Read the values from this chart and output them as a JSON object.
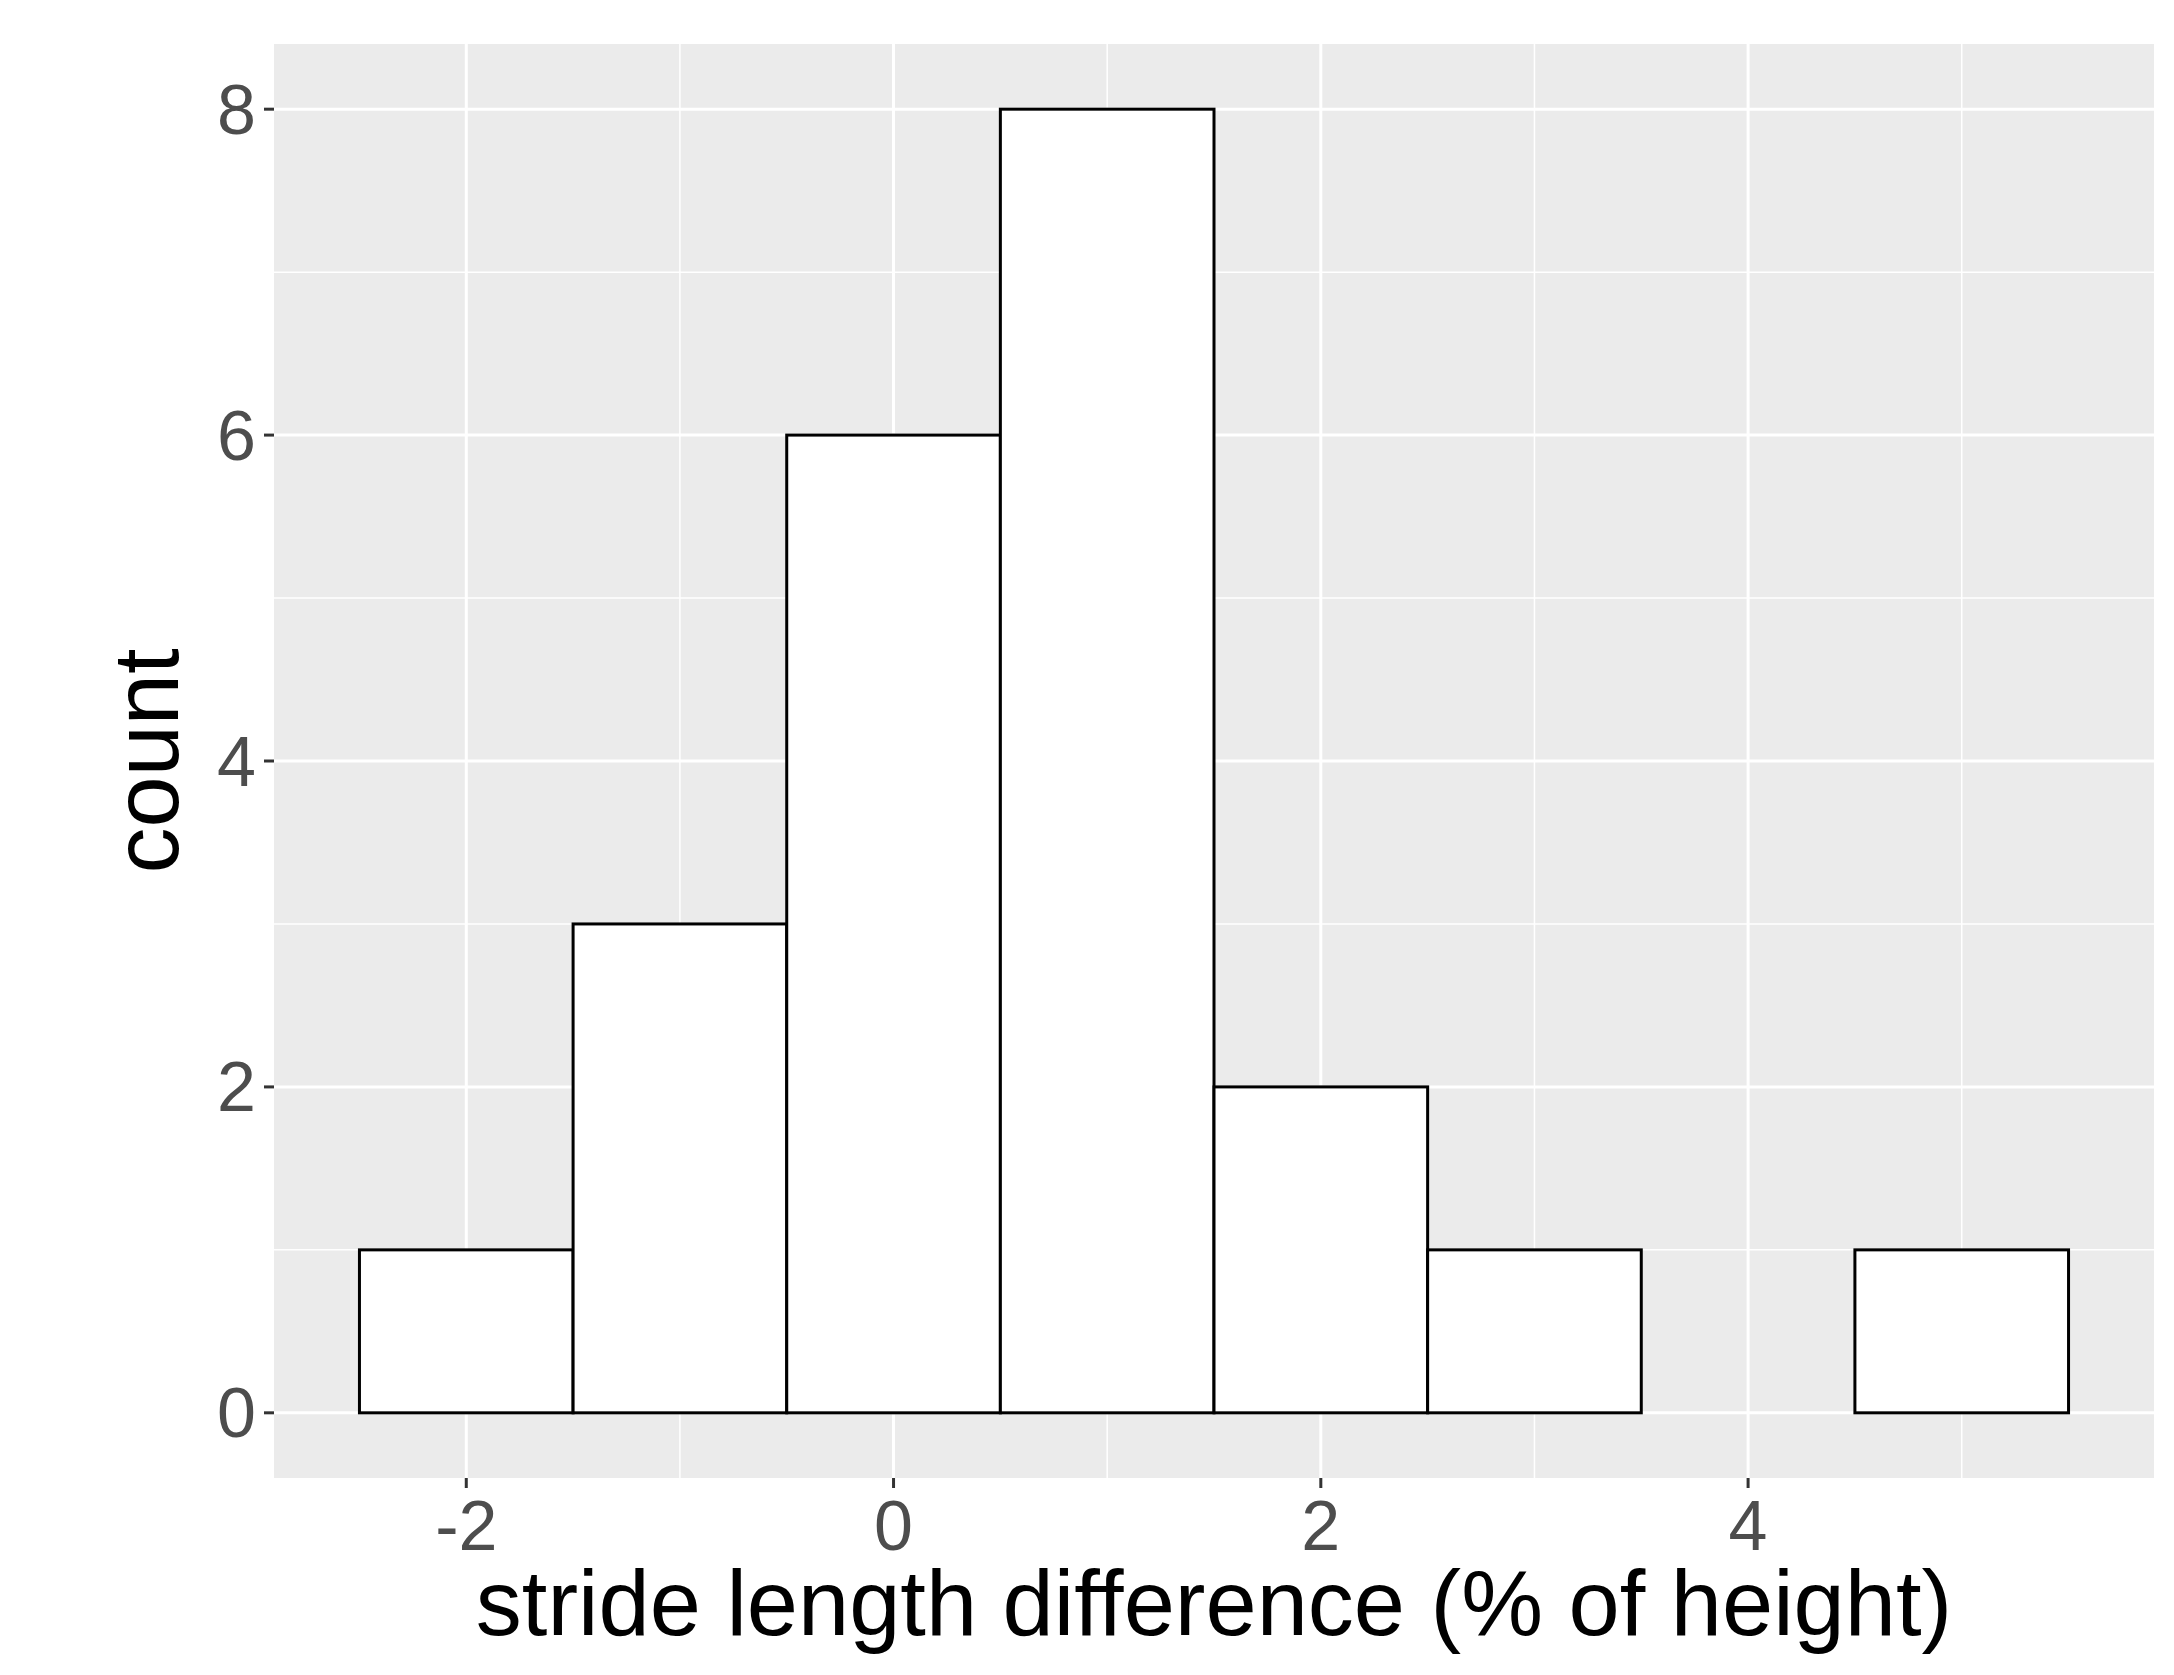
{
  "chart_data": {
    "type": "histogram",
    "xlabel": "stride length difference (% of height)",
    "ylabel": "count",
    "bins": [
      -2.5,
      -1.5,
      -0.5,
      0.5,
      1.5,
      2.5,
      3.5,
      4.5,
      5.5
    ],
    "values": [
      1,
      3,
      6,
      8,
      2,
      1,
      0,
      1
    ],
    "color": "#ffffff",
    "xlim": [
      -2.9,
      5.9
    ],
    "ylim": [
      -0.4,
      8.4
    ],
    "xticks": [
      -2,
      0,
      2,
      4
    ],
    "yticks": [
      0,
      2,
      4,
      6,
      8
    ],
    "grid": true
  }
}
